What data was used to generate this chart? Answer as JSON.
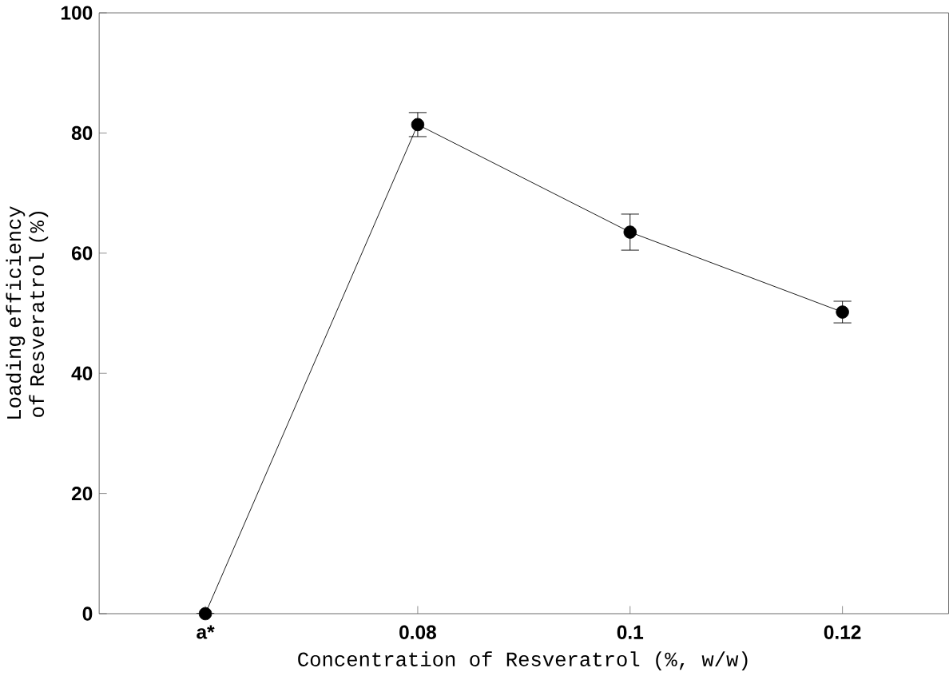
{
  "chart_data": {
    "type": "line",
    "xlabel": "Concentration of Resveratrol (%, w/w)",
    "ylabel": "Loading efficiency of Resveratrol (%)",
    "categories": [
      "a*",
      "0.08",
      "0.1",
      "0.12"
    ],
    "series": [
      {
        "color": "#000000",
        "values": [
          0,
          81.4,
          63.5,
          50.2
        ],
        "errors": [
          null,
          2,
          3,
          1.8
        ]
      }
    ],
    "ylim": [
      0,
      100
    ],
    "yticks": [
      0,
      20,
      40,
      60,
      80,
      100
    ],
    "marker": "circle",
    "line_style": "solid",
    "grid": false
  }
}
